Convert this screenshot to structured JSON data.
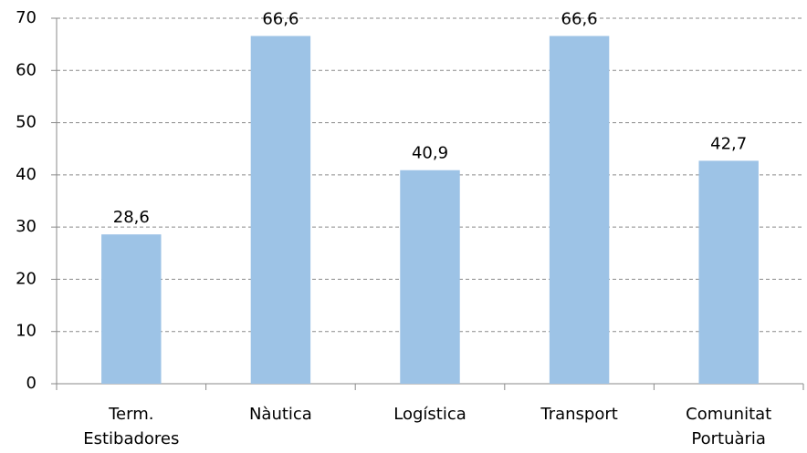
{
  "chart_data": {
    "type": "bar",
    "categories": [
      "Term. Estibadores",
      "Nàutica",
      "Logística",
      "Transport",
      "Comunitat Portuària"
    ],
    "values": [
      28.6,
      66.6,
      40.9,
      66.6,
      42.7
    ],
    "value_labels": [
      "28,6",
      "66,6",
      "40,9",
      "66,6",
      "42,7"
    ],
    "color": "#9dc3e6",
    "ylim": [
      0,
      70
    ],
    "yticks": [
      0,
      10,
      20,
      30,
      40,
      50,
      60,
      70
    ],
    "grid": true
  }
}
